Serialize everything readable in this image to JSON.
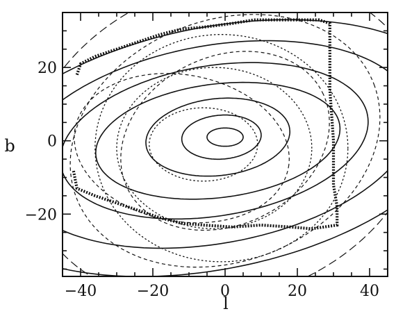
{
  "chart_data": {
    "type": "contour",
    "xlabel": "l",
    "ylabel": "b",
    "xlim": [
      -45,
      45
    ],
    "ylim": [
      -37,
      35
    ],
    "xticks": [
      -40,
      -20,
      0,
      20,
      40
    ],
    "yticks": [
      -20,
      0,
      20
    ],
    "xtick_labels": [
      "−40",
      "−20",
      "0",
      "20",
      "40"
    ],
    "ytick_labels": [
      "−20",
      "0",
      "20"
    ],
    "grid": false,
    "legend": "none",
    "series": [
      {
        "style": "solid",
        "contours": [
          {
            "cx": 0,
            "cy": 1,
            "rx": 5,
            "ry": 2.5,
            "angle": 0
          },
          {
            "cx": -1,
            "cy": 1,
            "rx": 11,
            "ry": 6,
            "angle": 4
          },
          {
            "cx": -2,
            "cy": 1,
            "rx": 20,
            "ry": 10.5,
            "angle": 6
          },
          {
            "cx": -2,
            "cy": 0,
            "rx": 34,
            "ry": 15.5,
            "angle": 7
          },
          {
            "cx": -3,
            "cy": 0,
            "rx": 43,
            "ry": 20.5,
            "angle": 9
          },
          {
            "cx": -3,
            "cy": -1,
            "rx": 56,
            "ry": 27,
            "angle": 10
          },
          {
            "cx": -3,
            "cy": -2,
            "rx": 70,
            "ry": 33,
            "angle": 11
          }
        ]
      },
      {
        "style": "dotted",
        "contours": [
          {
            "cx": -6,
            "cy": -1,
            "rx": 15,
            "ry": 10,
            "angle": 0
          },
          {
            "cx": -3,
            "cy": -2,
            "rx": 27,
            "ry": 22,
            "angle": 0
          },
          {
            "cx": -1,
            "cy": -2,
            "rx": 35,
            "ry": 31,
            "angle": 0
          }
        ]
      },
      {
        "style": "short-dash",
        "contours": [
          {
            "cx": -12,
            "cy": -2,
            "rx": 30,
            "ry": 20,
            "angle": -10
          },
          {
            "cx": 0,
            "cy": 0,
            "rx": 30,
            "ry": 23,
            "angle": 25
          },
          {
            "cx": 0,
            "cy": 0,
            "rx": 44,
            "ry": 33,
            "angle": 20
          }
        ]
      },
      {
        "style": "long-dash",
        "contours": [
          {
            "cx": 0,
            "cy": 0,
            "rx": 56,
            "ry": 43,
            "angle": 18
          }
        ]
      },
      {
        "style": "thick-dotted-boundary",
        "points": [
          [
            -41,
            18
          ],
          [
            -40,
            21
          ],
          [
            -36,
            23
          ],
          [
            -30,
            25
          ],
          [
            -24,
            27
          ],
          [
            -18,
            29
          ],
          [
            -12,
            30.5
          ],
          [
            -6,
            31
          ],
          [
            -2,
            31.5
          ],
          [
            2,
            32
          ],
          [
            8,
            33
          ],
          [
            14,
            33
          ],
          [
            20,
            33
          ],
          [
            26,
            33
          ],
          [
            29,
            32
          ],
          [
            29,
            26
          ],
          [
            29,
            14
          ],
          [
            30,
            0
          ],
          [
            30,
            -12
          ],
          [
            31,
            -18
          ],
          [
            31,
            -23
          ],
          [
            24,
            -24
          ],
          [
            18,
            -23.5
          ],
          [
            10,
            -23
          ],
          [
            2,
            -23.5
          ],
          [
            -6,
            -23
          ],
          [
            -12,
            -22.5
          ],
          [
            -18,
            -21
          ],
          [
            -24,
            -19
          ],
          [
            -30,
            -17
          ],
          [
            -36,
            -15
          ],
          [
            -41,
            -13
          ],
          [
            -42,
            -8
          ]
        ]
      }
    ]
  }
}
